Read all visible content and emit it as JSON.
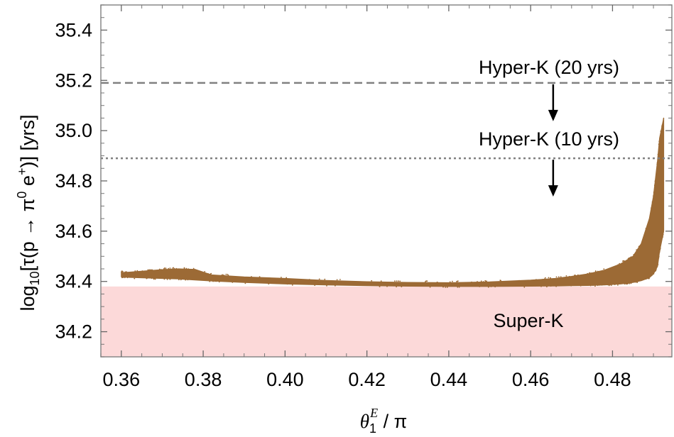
{
  "chart_data": {
    "type": "scatter",
    "xlabel": {
      "symbol": "θ",
      "subscript": "1",
      "superscript": "E",
      "suffix": " / π"
    },
    "ylabel": {
      "prefix": "log",
      "sub": "10",
      "p1": "[τ(p → π",
      "sup1": "0",
      "mid": " e",
      "sup2": "+",
      "p2": ")]  [yrs]"
    },
    "xlim": [
      0.355,
      0.4945
    ],
    "ylim": [
      34.1,
      35.5
    ],
    "xticks": [
      "0.36",
      "0.38",
      "0.40",
      "0.42",
      "0.44",
      "0.46",
      "0.48"
    ],
    "yticks": [
      "34.2",
      "34.4",
      "34.6",
      "34.8",
      "35.0",
      "35.2",
      "35.4"
    ],
    "grid": false,
    "series": [
      {
        "color": "#9c6a35",
        "band": {
          "x": [
            0.36,
            0.362,
            0.366,
            0.37,
            0.374,
            0.378,
            0.382,
            0.39,
            0.4,
            0.41,
            0.42,
            0.43,
            0.44,
            0.45,
            0.46,
            0.466,
            0.47,
            0.474,
            0.478,
            0.482,
            0.485,
            0.487,
            0.489,
            0.49,
            0.491,
            0.4915,
            0.4925
          ],
          "lower": [
            34.418,
            34.416,
            34.414,
            34.412,
            34.41,
            34.406,
            34.402,
            34.396,
            34.39,
            34.386,
            34.383,
            34.381,
            34.38,
            34.38,
            34.381,
            34.382,
            34.383,
            34.384,
            34.386,
            34.39,
            34.396,
            34.403,
            34.415,
            34.43,
            34.46,
            34.52,
            34.6
          ],
          "upper": [
            34.435,
            34.437,
            34.442,
            34.447,
            34.45,
            34.448,
            34.426,
            34.418,
            34.412,
            34.404,
            34.399,
            34.396,
            34.395,
            34.398,
            34.405,
            34.412,
            34.42,
            34.43,
            34.445,
            34.47,
            34.5,
            34.55,
            34.65,
            34.74,
            34.88,
            34.97,
            35.05
          ]
        }
      }
    ],
    "bounds": [
      {
        "label": "Super-K",
        "y": 34.38,
        "type": "excluded-region",
        "color": "#fcd9d9"
      },
      {
        "label": "Hyper-K (20 yrs)",
        "y": 35.19,
        "type": "dashed",
        "color": "#808080"
      },
      {
        "label": "Hyper-K (10 yrs)",
        "y": 34.89,
        "type": "dotted",
        "color": "#808080"
      }
    ],
    "arrow_x": 0.4655
  }
}
